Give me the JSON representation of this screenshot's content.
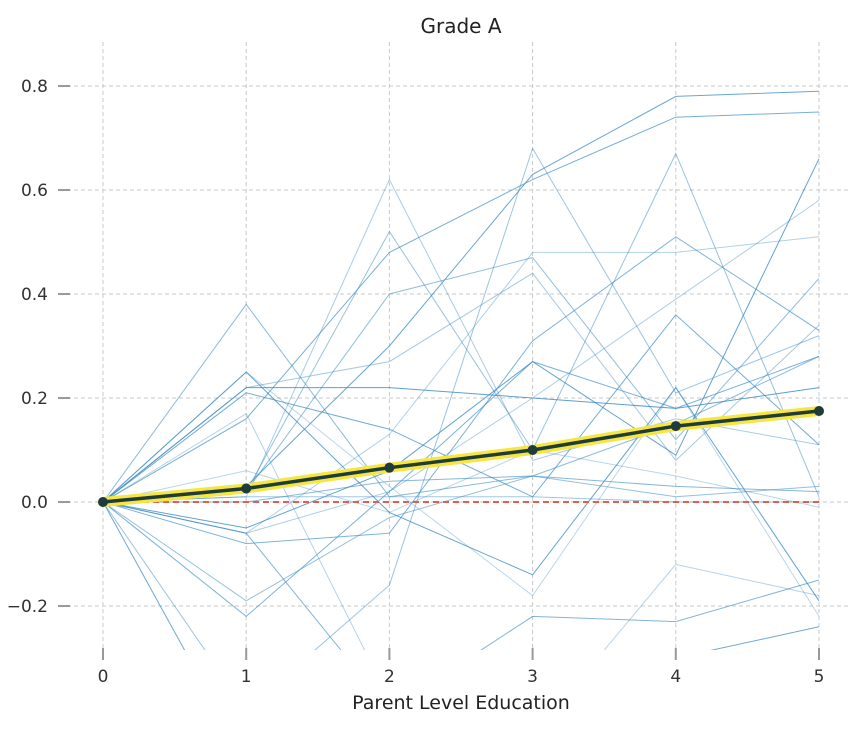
{
  "chart_data": {
    "type": "line",
    "title": "Grade A",
    "xlabel": "Parent Level Education",
    "ylabel": "",
    "x": [
      0,
      1,
      2,
      3,
      4,
      5
    ],
    "xlim": [
      -0.3,
      5.05
    ],
    "ylim": [
      -0.28,
      0.88
    ],
    "yticks": [
      -0.2,
      0.0,
      0.2,
      0.4,
      0.6,
      0.8
    ],
    "ytick_labels": [
      "−0.2",
      "0.0",
      "0.2",
      "0.4",
      "0.6",
      "0.8"
    ],
    "xtick_labels": [
      "0",
      "1",
      "2",
      "3",
      "4",
      "5"
    ],
    "grid": true,
    "colors": {
      "ice_lines": "#3d8cc4",
      "average_highlight": "#f5e642",
      "average_line": "#1f3b3a",
      "zero_reference": "#e0604f"
    },
    "series": [
      {
        "values": [
          0,
          0.25,
          0.03,
          -0.18,
          0.22,
          -0.22
        ]
      },
      {
        "values": [
          0,
          0.21,
          0.14,
          0.01,
          0.36,
          0.11
        ]
      },
      {
        "values": [
          0,
          0.38,
          0.01,
          0.05,
          0.15,
          0.28
        ]
      },
      {
        "values": [
          0,
          0.22,
          0.27,
          0.44,
          0.08,
          0.34
        ]
      },
      {
        "values": [
          0,
          0.22,
          0.22,
          0.2,
          0.18,
          0.22
        ]
      },
      {
        "values": [
          0,
          0.16,
          0.48,
          0.62,
          0.74,
          0.75
        ]
      },
      {
        "values": [
          0,
          0.02,
          0.4,
          0.47,
          0.12,
          0.43
        ]
      },
      {
        "values": [
          0,
          0.01,
          0.62,
          0.08,
          0.16,
          0.11
        ]
      },
      {
        "values": [
          0,
          -0.05,
          0.06,
          0.27,
          0.09,
          0.66
        ]
      },
      {
        "values": [
          0,
          -0.22,
          0.02,
          0.27,
          0.18,
          0.28
        ]
      },
      {
        "values": [
          0,
          -0.19,
          -0.03,
          0.05,
          0.01,
          0.03
        ]
      },
      {
        "values": [
          0,
          -0.06,
          0.02,
          0.2,
          0.39,
          0.58
        ]
      },
      {
        "values": [
          0,
          0.25,
          -0.02,
          -0.14,
          0.22,
          -0.19
        ]
      },
      {
        "values": [
          0,
          -0.08,
          -0.06,
          0.31,
          0.51,
          0.33
        ]
      },
      {
        "values": [
          0,
          0.02,
          0.52,
          0.1,
          0.67,
          0.01
        ]
      },
      {
        "values": [
          0,
          -0.06,
          0.13,
          0.48,
          0.48,
          0.51
        ]
      },
      {
        "values": [
          0,
          0.03,
          0.3,
          0.63,
          0.78,
          0.79
        ]
      },
      {
        "values": [
          0,
          -0.06,
          -0.4,
          -0.22,
          -0.23,
          -0.15
        ]
      },
      {
        "values": [
          0,
          -0.4,
          -0.16,
          0.68,
          0.21,
          0.32
        ]
      },
      {
        "values": [
          0,
          0.17,
          -0.38,
          -0.45,
          -0.12,
          -0.18
        ]
      },
      {
        "values": [
          0,
          -0.5,
          -0.45,
          -0.3,
          -0.3,
          -0.24
        ]
      },
      {
        "values": [
          0,
          0.0,
          0.04,
          0.05,
          0.03,
          0.02
        ]
      },
      {
        "values": [
          0,
          0.01,
          0.01,
          0.01,
          0.0,
          0.0
        ]
      },
      {
        "values": [
          0,
          0.06,
          -0.02,
          0.1,
          0.05,
          -0.01
        ]
      }
    ],
    "average": {
      "values": [
        0,
        0.026,
        0.066,
        0.1,
        0.146,
        0.175
      ]
    },
    "reference": {
      "values": [
        0,
        0,
        0,
        0,
        0,
        0
      ]
    }
  }
}
